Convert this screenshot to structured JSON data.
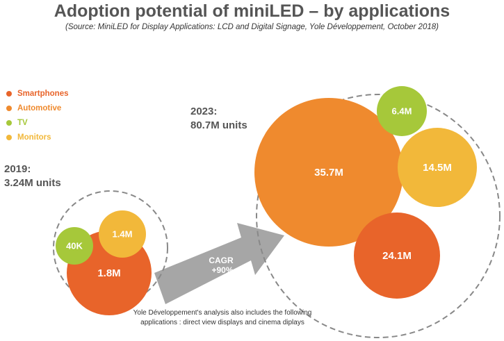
{
  "title": "Adoption potential of miniLED – by applications",
  "subtitle": "(Source: MiniLED for Display Applications: LCD and Digital Signage, Yole Développement, October 2018)",
  "legend": [
    {
      "label": "Smartphones",
      "color": "#e8642a"
    },
    {
      "label": "Automotive",
      "color": "#ef8a2e"
    },
    {
      "label": "TV",
      "color": "#a6c83a"
    },
    {
      "label": "Monitors",
      "color": "#f2b83a"
    }
  ],
  "arrow": {
    "line1": "CAGR",
    "line2": "+90%"
  },
  "footnote": {
    "line1": "Yole Développement's analysis also includes the following",
    "line2": "applications : direct view displays and cinema diplays"
  },
  "chart_data": {
    "type": "bubble",
    "title": "Adoption potential of miniLED – by applications",
    "subtitle": "(Source: MiniLED for Display Applications: LCD and Digital Signage, Yole Développement, October 2018)",
    "series_names": [
      "Smartphones",
      "Automotive",
      "TV",
      "Monitors"
    ],
    "groups": [
      {
        "year": "2019",
        "label": "2019:",
        "total": "3.24M units",
        "bubbles": [
          {
            "series": "Smartphones",
            "label": "1.8M",
            "value_millions": 1.8,
            "color": "#e8642a"
          },
          {
            "series": "Monitors",
            "label": "1.4M",
            "value_millions": 1.4,
            "color": "#f2b83a"
          },
          {
            "series": "TV",
            "label": "40K",
            "value_millions": 0.04,
            "color": "#a6c83a"
          }
        ]
      },
      {
        "year": "2023",
        "label": "2023:",
        "total": "80.7M units",
        "bubbles": [
          {
            "series": "Automotive",
            "label": "35.7M",
            "value_millions": 35.7,
            "color": "#ef8a2e"
          },
          {
            "series": "Smartphones",
            "label": "24.1M",
            "value_millions": 24.1,
            "color": "#e8642a"
          },
          {
            "series": "Monitors",
            "label": "14.5M",
            "value_millions": 14.5,
            "color": "#f2b83a"
          },
          {
            "series": "TV",
            "label": "6.4M",
            "value_millions": 6.4,
            "color": "#a6c83a"
          }
        ]
      }
    ],
    "growth": {
      "label": "CAGR",
      "value": "+90%"
    },
    "legend_position": "left"
  }
}
